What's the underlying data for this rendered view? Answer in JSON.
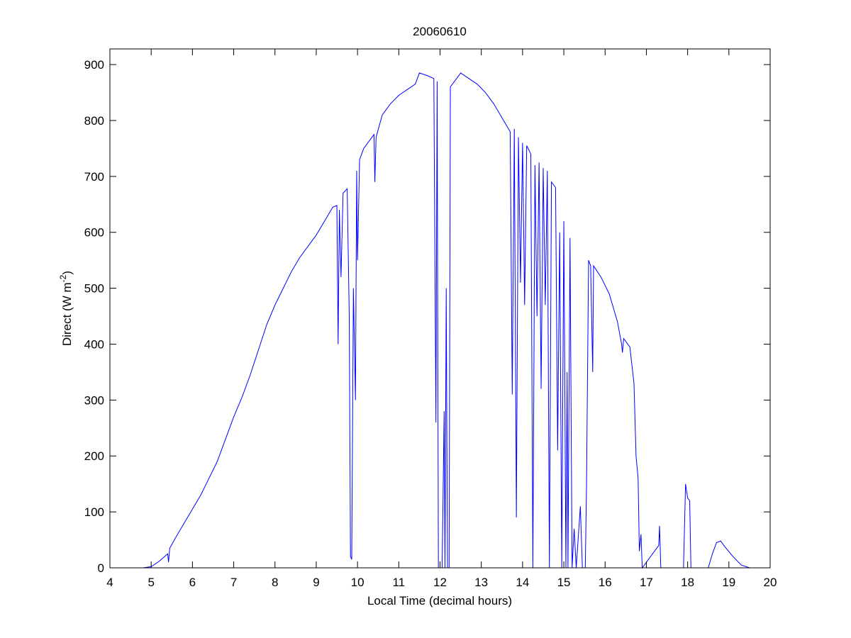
{
  "chart_data": {
    "type": "line",
    "title": "20060610",
    "xlabel": "Local Time (decimal hours)",
    "ylabel": "Direct (W m",
    "ylabel_sup": "-2",
    "ylabel_end": ")",
    "color": "#0000ff",
    "xlim": [
      4,
      20
    ],
    "xticks": [
      4,
      5,
      6,
      7,
      8,
      9,
      10,
      11,
      12,
      13,
      14,
      15,
      16,
      17,
      18,
      19,
      20
    ],
    "ylim": [
      0,
      928
    ],
    "yticks": [
      0,
      100,
      200,
      300,
      400,
      500,
      600,
      700,
      800,
      900
    ],
    "x": [
      4.8,
      5.0,
      5.2,
      5.4,
      5.42,
      5.45,
      5.6,
      5.8,
      6.0,
      6.2,
      6.4,
      6.6,
      6.8,
      7.0,
      7.2,
      7.4,
      7.6,
      7.8,
      8.0,
      8.2,
      8.4,
      8.6,
      8.8,
      9.0,
      9.2,
      9.4,
      9.5,
      9.53,
      9.56,
      9.6,
      9.65,
      9.75,
      9.8,
      9.83,
      9.86,
      9.9,
      9.95,
      9.98,
      10.0,
      10.05,
      10.15,
      10.3,
      10.4,
      10.42,
      10.45,
      10.6,
      10.8,
      11.0,
      11.2,
      11.4,
      11.5,
      11.7,
      11.85,
      11.9,
      11.93,
      11.96,
      12.05,
      12.1,
      12.12,
      12.15,
      12.18,
      12.22,
      12.25,
      12.4,
      12.5,
      12.7,
      12.9,
      13.1,
      13.3,
      13.5,
      13.7,
      13.75,
      13.8,
      13.85,
      13.9,
      13.95,
      14.0,
      14.05,
      14.1,
      14.2,
      14.25,
      14.3,
      14.35,
      14.4,
      14.45,
      14.5,
      14.55,
      14.6,
      14.65,
      14.7,
      14.8,
      14.85,
      14.9,
      14.95,
      15.0,
      15.05,
      15.08,
      15.1,
      15.15,
      15.2,
      15.25,
      15.3,
      15.4,
      15.45,
      15.52,
      15.55,
      15.6,
      15.65,
      15.7,
      15.72,
      15.9,
      16.1,
      16.3,
      16.4,
      16.42,
      16.45,
      16.6,
      16.7,
      16.75,
      16.8,
      16.83,
      16.87,
      16.9,
      17.3,
      17.32,
      17.35,
      17.9,
      17.95,
      18.0,
      18.05,
      18.08,
      18.5,
      18.6,
      18.7,
      18.8,
      18.9,
      19.1,
      19.3,
      19.5
    ],
    "values": [
      0,
      2,
      12,
      25,
      10,
      35,
      55,
      80,
      105,
      130,
      160,
      190,
      230,
      270,
      305,
      345,
      390,
      435,
      470,
      500,
      530,
      555,
      575,
      595,
      620,
      645,
      648,
      400,
      640,
      520,
      670,
      678,
      450,
      20,
      15,
      500,
      300,
      710,
      550,
      730,
      750,
      765,
      775,
      690,
      770,
      810,
      830,
      845,
      855,
      865,
      885,
      880,
      875,
      260,
      870,
      0,
      0,
      280,
      0,
      500,
      0,
      0,
      860,
      875,
      885,
      875,
      865,
      850,
      830,
      805,
      780,
      310,
      785,
      90,
      770,
      510,
      760,
      470,
      755,
      740,
      0,
      720,
      450,
      725,
      320,
      715,
      470,
      710,
      0,
      690,
      680,
      210,
      600,
      0,
      620,
      0,
      350,
      0,
      590,
      0,
      70,
      0,
      110,
      0,
      0,
      150,
      550,
      540,
      350,
      540,
      520,
      490,
      440,
      400,
      385,
      410,
      395,
      330,
      200,
      160,
      30,
      60,
      0,
      40,
      75,
      0,
      0,
      150,
      125,
      120,
      0,
      0,
      25,
      45,
      48,
      38,
      20,
      5,
      0
    ]
  }
}
